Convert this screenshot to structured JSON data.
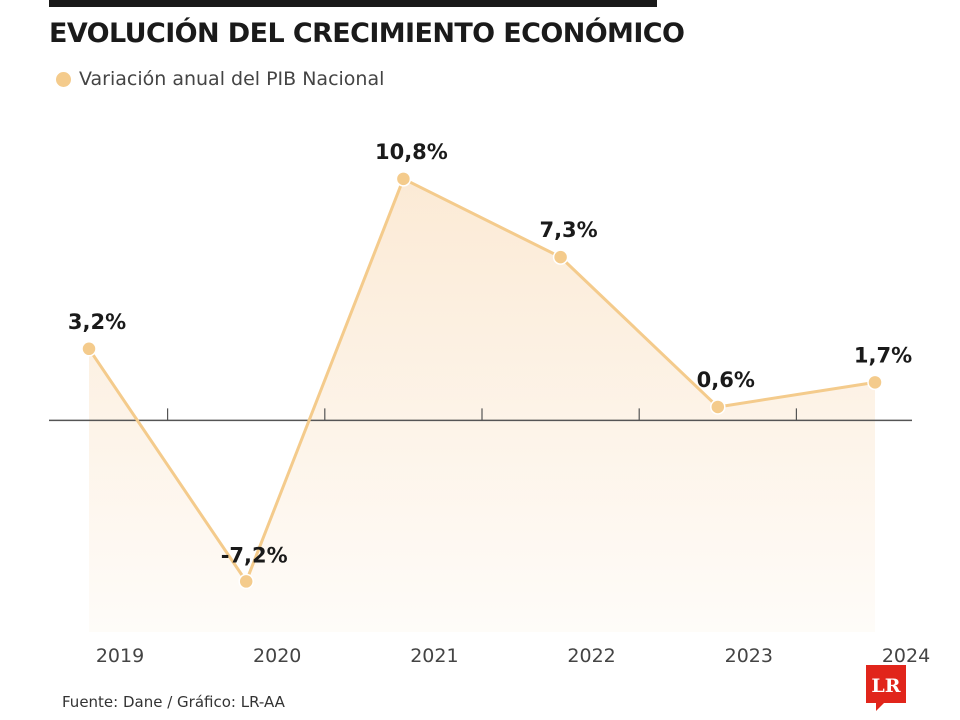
{
  "header": {
    "title": "EVOLUCIÓN DEL CRECIMIENTO ECONÓMICO",
    "legend_label": "Variación anual del PIB Nacional"
  },
  "footer": {
    "source": "Fuente: Dane / Gráfico: LR-AA",
    "logo_text": "LR"
  },
  "colors": {
    "series": "#f4cb8c",
    "fill": "#fbe9d3",
    "axis": "#555555",
    "logo": "#e1251b",
    "text": "#1a1a1a"
  },
  "chart_data": {
    "type": "line",
    "x": [
      "2019",
      "2020",
      "2021",
      "2022",
      "2023",
      "2024"
    ],
    "series": [
      {
        "name": "Variación anual del PIB Nacional",
        "values": [
          3.2,
          -7.2,
          10.8,
          7.3,
          0.6,
          1.7
        ],
        "labels": [
          "3,2%",
          "-7,2%",
          "10,8%",
          "7,3%",
          "0,6%",
          "1,7%"
        ]
      }
    ],
    "ylim": [
      -8.3,
      12
    ],
    "grid": false,
    "area_fill": true,
    "legend": "top-left"
  }
}
